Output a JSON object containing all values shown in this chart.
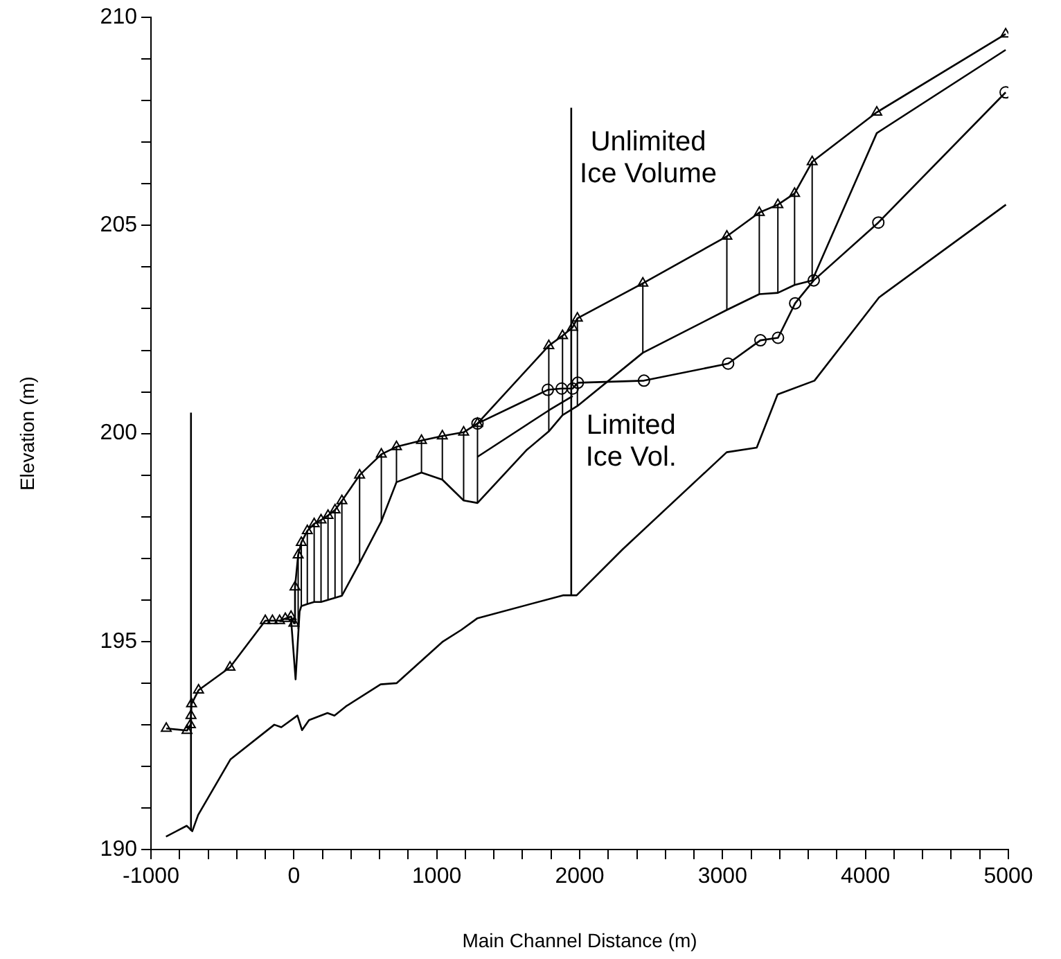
{
  "chart_data": {
    "type": "line",
    "xlabel": "Main Channel Distance (m)",
    "ylabel": "Elevation (m)",
    "xlim": [
      -1000,
      5000
    ],
    "ylim": [
      190,
      210
    ],
    "xticks": [
      -1000,
      {
        "value": -800,
        "label": null
      },
      {
        "value": -600,
        "label": null
      },
      {
        "value": -400,
        "label": null
      },
      {
        "value": -200,
        "label": null
      },
      0,
      {
        "value": 200,
        "label": null
      },
      {
        "value": 400,
        "label": null
      },
      {
        "value": 600,
        "label": null
      },
      {
        "value": 800,
        "label": null
      },
      1000,
      {
        "value": 1200,
        "label": null
      },
      {
        "value": 1400,
        "label": null
      },
      {
        "value": 1600,
        "label": null
      },
      {
        "value": 1800,
        "label": null
      },
      2000,
      {
        "value": 2200,
        "label": null
      },
      {
        "value": 2400,
        "label": null
      },
      {
        "value": 2600,
        "label": null
      },
      {
        "value": 2800,
        "label": null
      },
      3000,
      {
        "value": 3200,
        "label": null
      },
      {
        "value": 3400,
        "label": null
      },
      {
        "value": 3600,
        "label": null
      },
      {
        "value": 3800,
        "label": null
      },
      4000,
      {
        "value": 4200,
        "label": null
      },
      {
        "value": 4400,
        "label": null
      },
      {
        "value": 4600,
        "label": null
      },
      {
        "value": 4800,
        "label": null
      },
      5000
    ],
    "yticks": [
      190,
      {
        "value": 191,
        "label": null
      },
      {
        "value": 192,
        "label": null
      },
      {
        "value": 193,
        "label": null
      },
      {
        "value": 194,
        "label": null
      },
      195,
      {
        "value": 196,
        "label": null
      },
      {
        "value": 197,
        "label": null
      },
      {
        "value": 198,
        "label": null
      },
      {
        "value": 199,
        "label": null
      },
      200,
      {
        "value": 201,
        "label": null
      },
      {
        "value": 202,
        "label": null
      },
      {
        "value": 203,
        "label": null
      },
      {
        "value": 204,
        "label": null
      },
      205,
      {
        "value": 206,
        "label": null
      },
      {
        "value": 207,
        "label": null
      },
      {
        "value": 208,
        "label": null
      },
      {
        "value": 209,
        "label": null
      },
      210
    ],
    "grid": false,
    "legend": false,
    "series": [
      {
        "color": "#000000",
        "marker": "none",
        "x": [
          -895,
          -750,
          -711,
          -670,
          -443,
          -137,
          -88,
          -56,
          25,
          57,
          106,
          235,
          284,
          364,
          607,
          720,
          1043,
          1172,
          1285,
          1883,
          1979,
          2302,
          3029,
          3239,
          3385,
          3643,
          4095,
          4983
        ],
        "values": [
          190.31,
          190.57,
          190.44,
          190.83,
          192.17,
          193.0,
          192.94,
          193.02,
          193.22,
          192.87,
          193.11,
          193.28,
          193.22,
          193.44,
          193.97,
          194.0,
          195.0,
          195.28,
          195.56,
          196.11,
          196.11,
          197.22,
          199.55,
          199.66,
          200.94,
          201.27,
          203.27,
          205.5
        ]
      },
      {
        "color": "#000000",
        "marker": "triangle",
        "x": [
          -893,
          -748,
          -724,
          -720,
          -716,
          -667,
          -447,
          -200,
          -150,
          -100,
          -60,
          -20,
          0,
          8,
          30,
          52,
          94,
          142,
          190,
          239,
          288,
          336,
          460,
          612,
          718,
          893,
          1039,
          1188,
          1285,
          1784,
          1880,
          1950,
          1984,
          2442,
          3030,
          3257,
          3387,
          3504,
          3627,
          4079,
          4981
        ],
        "values": [
          192.91,
          192.86,
          193.0,
          193.22,
          193.5,
          193.83,
          194.38,
          195.5,
          195.5,
          195.5,
          195.55,
          195.6,
          195.44,
          196.31,
          197.08,
          197.38,
          197.66,
          197.83,
          197.92,
          198.03,
          198.16,
          198.38,
          199.0,
          199.5,
          199.68,
          199.83,
          199.94,
          200.03,
          200.24,
          202.11,
          202.35,
          202.55,
          202.77,
          203.61,
          204.74,
          205.31,
          205.5,
          205.77,
          206.53,
          207.72,
          209.6
        ],
        "errors": [
          null,
          null,
          null,
          null,
          null,
          null,
          null,
          null,
          null,
          null,
          null,
          null,
          null,
          null,
          [
            195.3,
            197.08
          ],
          [
            195.85,
            197.38
          ],
          [
            195.9,
            197.66
          ],
          [
            195.95,
            197.83
          ],
          [
            195.95,
            197.92
          ],
          [
            196.0,
            198.03
          ],
          [
            196.05,
            198.16
          ],
          [
            196.1,
            198.38
          ],
          [
            196.89,
            199.0
          ],
          [
            197.89,
            199.5
          ],
          [
            198.83,
            199.68
          ],
          [
            199.06,
            199.83
          ],
          [
            198.89,
            199.94
          ],
          [
            198.39,
            200.03
          ],
          [
            198.33,
            200.24
          ],
          [
            200.05,
            202.11
          ],
          [
            200.44,
            202.35
          ],
          null,
          [
            200.66,
            202.77
          ],
          [
            201.94,
            203.61
          ],
          [
            202.97,
            204.74
          ],
          [
            203.35,
            205.31
          ],
          [
            203.38,
            205.5
          ],
          [
            203.57,
            205.77
          ],
          [
            203.68,
            206.53
          ],
          null,
          null
        ]
      },
      {
        "color": "#000000",
        "marker": "none",
        "x": [
          -20,
          12,
          40,
          52,
          94,
          142,
          190,
          239,
          288,
          336,
          460,
          612,
          718,
          893,
          1039,
          1188,
          1285,
          1628,
          1784,
          1880,
          1984,
          2442,
          3030,
          3257,
          3387,
          3504,
          3627,
          4079,
          4981
        ],
        "values": [
          195.55,
          194.09,
          195.72,
          195.85,
          195.9,
          195.95,
          195.95,
          196.0,
          196.05,
          196.1,
          196.89,
          197.89,
          198.83,
          199.06,
          198.89,
          198.39,
          198.33,
          199.6,
          200.05,
          200.44,
          200.66,
          201.94,
          202.97,
          203.35,
          203.38,
          203.57,
          203.68,
          207.22,
          209.22
        ]
      },
      {
        "color": "#000000",
        "marker": "circle",
        "x": [
          1285,
          1777,
          1874,
          1951,
          1987,
          2450,
          3039,
          3265,
          3388,
          3508,
          3638,
          4090,
          4981
        ],
        "values": [
          200.24,
          201.05,
          201.08,
          201.08,
          201.22,
          201.27,
          201.68,
          202.24,
          202.3,
          203.13,
          203.68,
          205.07,
          208.2
        ]
      },
      {
        "color": "#000000",
        "marker": "none",
        "x": [
          1285,
          1786,
          1951
        ],
        "values": [
          199.44,
          200.56,
          200.9
        ]
      },
      {
        "color": "#000000",
        "marker": "none",
        "x": [
          -720,
          -720
        ],
        "values": [
          190.45,
          200.5
        ]
      },
      {
        "color": "#000000",
        "marker": "none",
        "x": [
          1941,
          1941
        ],
        "values": [
          196.11,
          207.83
        ]
      }
    ],
    "annotations": [
      "Unlimited\nIce Volume",
      "Limited\nIce Vol."
    ]
  }
}
